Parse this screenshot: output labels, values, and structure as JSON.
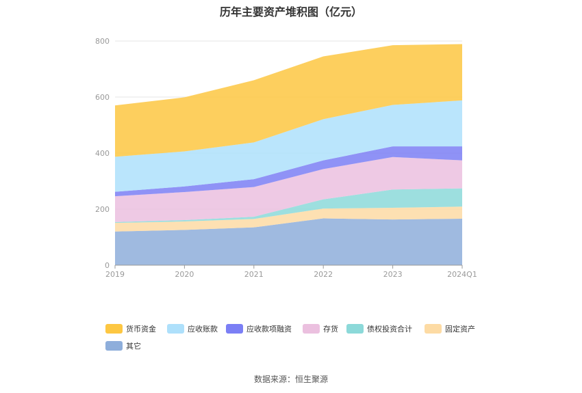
{
  "chart_data": {
    "type": "area",
    "stacked": true,
    "title": "历年主要资产堆积图（亿元）",
    "x": [
      "2019",
      "2020",
      "2021",
      "2022",
      "2023",
      "2024Q1"
    ],
    "ylim": [
      0,
      800
    ],
    "yticks": [
      "0",
      "200",
      "400",
      "600",
      "800"
    ],
    "grid": true,
    "legend_position": "bottom",
    "series": [
      {
        "name": "其它",
        "color": "#8eaedb",
        "values": [
          120,
          126,
          135,
          167,
          163,
          166
        ]
      },
      {
        "name": "固定资产",
        "color": "#fddba4",
        "values": [
          31,
          30,
          30,
          35,
          42,
          43
        ]
      },
      {
        "name": "债权投资合计",
        "color": "#8cd9d9",
        "values": [
          3,
          5,
          8,
          33,
          65,
          65
        ]
      },
      {
        "name": "存货",
        "color": "#ebc0df",
        "values": [
          92,
          100,
          106,
          108,
          116,
          100
        ]
      },
      {
        "name": "应收款项融资",
        "color": "#7b7ff5",
        "values": [
          16,
          20,
          28,
          31,
          38,
          50
        ]
      },
      {
        "name": "应收账款",
        "color": "#aee0fb",
        "values": [
          125,
          125,
          131,
          147,
          148,
          164
        ]
      },
      {
        "name": "货币资金",
        "color": "#fdc742",
        "values": [
          183,
          193,
          222,
          224,
          213,
          201
        ]
      }
    ],
    "legend_order": [
      "货币资金",
      "应收账款",
      "应收款项融资",
      "存货",
      "债权投资合计",
      "固定资产",
      "其它"
    ]
  },
  "source_text": "数据来源：恒生聚源"
}
